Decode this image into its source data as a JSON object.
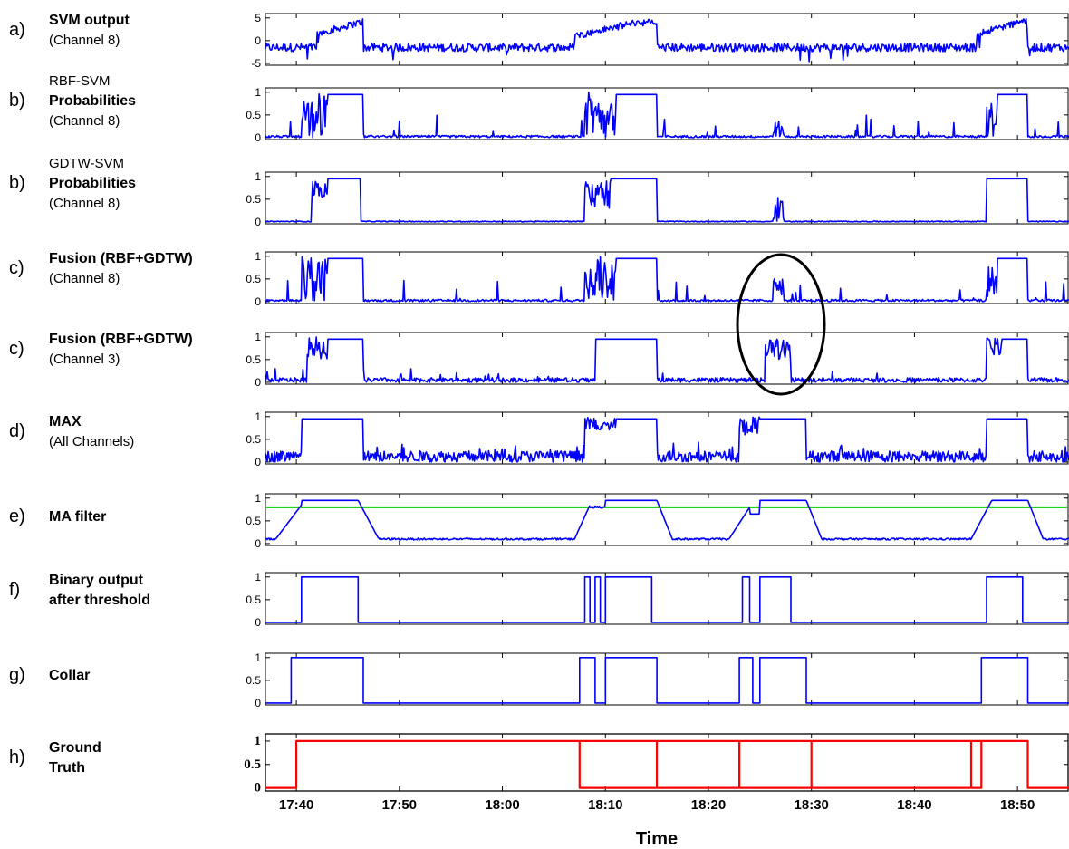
{
  "chart_data": {
    "type": "line",
    "xlabel": "Time",
    "x_ticks": [
      "17:40",
      "17:50",
      "18:00",
      "18:10",
      "18:20",
      "18:30",
      "18:40",
      "18:50"
    ],
    "x_range": [
      "17:37",
      "18:55"
    ],
    "series_color": "#0000ff",
    "threshold_color": "#00cc00",
    "ground_truth_color": "#ff0000",
    "annotation": "ellipse around activity near 18:27 in both Fusion panels",
    "panels": [
      {
        "letter": "a)",
        "lines": [
          {
            "text": "SVM output",
            "bold": true
          },
          {
            "text": "(Channel  8)",
            "bold": false
          }
        ],
        "ylim": [
          -5,
          5
        ],
        "yticks": [
          "5",
          "0",
          "-5"
        ],
        "kind": "svm"
      },
      {
        "letter": "b)",
        "lines": [
          {
            "text": "RBF-SVM",
            "bold": false
          },
          {
            "text": "Probabilities",
            "bold": true
          },
          {
            "text": "(Channel  8)",
            "bold": false
          }
        ],
        "ylim": [
          0,
          1
        ],
        "yticks": [
          "1",
          "0.5",
          "0"
        ],
        "kind": "rbf"
      },
      {
        "letter": "b)",
        "lines": [
          {
            "text": "GDTW-SVM",
            "bold": false
          },
          {
            "text": "Probabilities",
            "bold": true
          },
          {
            "text": "(Channel  8)",
            "bold": false
          }
        ],
        "ylim": [
          0,
          1
        ],
        "yticks": [
          "1",
          "0.5",
          "0"
        ],
        "kind": "gdtw"
      },
      {
        "letter": "c)",
        "lines": [
          {
            "text": "Fusion (RBF+GDTW)",
            "bold": true
          },
          {
            "text": "(Channel  8)",
            "bold": false
          }
        ],
        "ylim": [
          0,
          1
        ],
        "yticks": [
          "1",
          "0.5",
          "0"
        ],
        "kind": "fusion8"
      },
      {
        "letter": "c)",
        "lines": [
          {
            "text": "Fusion (RBF+GDTW)",
            "bold": true
          },
          {
            "text": "(Channel  3)",
            "bold": false
          }
        ],
        "ylim": [
          0,
          1
        ],
        "yticks": [
          "1",
          "0.5",
          "0"
        ],
        "kind": "fusion3"
      },
      {
        "letter": "d)",
        "lines": [
          {
            "text": "MAX",
            "bold": true
          },
          {
            "text": "(All Channels)",
            "bold": false
          }
        ],
        "ylim": [
          0,
          1
        ],
        "yticks": [
          "1",
          "0.5",
          "0"
        ],
        "kind": "max"
      },
      {
        "letter": "e)",
        "lines": [
          {
            "text": "MA filter",
            "bold": true
          }
        ],
        "ylim": [
          0,
          1
        ],
        "yticks": [
          "1",
          "0.5",
          "0"
        ],
        "kind": "ma",
        "threshold": 0.8
      },
      {
        "letter": "f)",
        "lines": [
          {
            "text": "Binary output",
            "bold": true
          },
          {
            "text": "after threshold",
            "bold": true
          }
        ],
        "ylim": [
          0,
          1
        ],
        "yticks": [
          "1",
          "0.5",
          "0"
        ],
        "kind": "binary",
        "segments": [
          [
            "17:40.5",
            "17:46"
          ],
          [
            "18:08",
            "18:08.5"
          ],
          [
            "18:09",
            "18:09.5"
          ],
          [
            "18:10",
            "18:14.5"
          ],
          [
            "18:23.3",
            "18:24"
          ],
          [
            "18:25",
            "18:28"
          ],
          [
            "18:47",
            "18:50.5"
          ]
        ]
      },
      {
        "letter": "g)",
        "lines": [
          {
            "text": "Collar",
            "bold": true
          }
        ],
        "ylim": [
          0,
          1
        ],
        "yticks": [
          "1",
          "0.5",
          "0"
        ],
        "kind": "collar",
        "segments": [
          [
            "17:39.5",
            "17:46.5"
          ],
          [
            "18:07.5",
            "18:09"
          ],
          [
            "18:10",
            "18:15"
          ],
          [
            "18:23",
            "18:24.3"
          ],
          [
            "18:25",
            "18:29.5"
          ],
          [
            "18:46.5",
            "18:51"
          ]
        ]
      },
      {
        "letter": "h)",
        "lines": [
          {
            "text": "Ground",
            "bold": true
          },
          {
            "text": "Truth",
            "bold": true
          }
        ],
        "ylim": [
          0,
          1
        ],
        "yticks": [
          "1",
          "0.5",
          "0"
        ],
        "kind": "gt",
        "segments": [
          [
            "17:40",
            "18:46.5"
          ],
          [
            "18:07.5",
            "18:15"
          ],
          [
            "18:23",
            "18:30"
          ],
          [
            "18:45.5",
            "18:51"
          ]
        ]
      }
    ]
  }
}
